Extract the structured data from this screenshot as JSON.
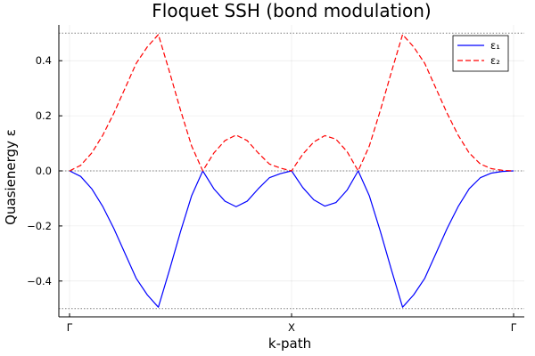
{
  "chart_data": {
    "type": "line",
    "title": "Floquet SSH (bond modulation)",
    "xlabel": "k-path",
    "ylabel": "Quasienergy ε",
    "xlim": [
      0,
      2
    ],
    "ylim": [
      -0.53,
      0.53
    ],
    "x_ticks": [
      {
        "value": 0,
        "label": "Γ"
      },
      {
        "value": 1,
        "label": "X"
      },
      {
        "value": 2,
        "label": "Γ"
      }
    ],
    "y_ticks": [
      {
        "value": -0.4,
        "label": "−0.4"
      },
      {
        "value": -0.2,
        "label": "−0.2"
      },
      {
        "value": 0.0,
        "label": "0.0"
      },
      {
        "value": 0.2,
        "label": "0.2"
      },
      {
        "value": 0.4,
        "label": "0.4"
      }
    ],
    "reference_lines_y": [
      -0.5,
      0.0,
      0.5
    ],
    "grid": true,
    "legend_position": "top-right",
    "x": [
      0,
      0.05,
      0.1,
      0.15,
      0.2,
      0.25,
      0.3,
      0.35,
      0.4,
      0.45,
      0.5,
      0.55,
      0.6,
      0.65,
      0.7,
      0.75,
      0.8,
      0.85,
      0.9,
      0.95,
      1.0,
      1.05,
      1.1,
      1.15,
      1.2,
      1.25,
      1.3,
      1.35,
      1.4,
      1.45,
      1.5,
      1.55,
      1.6,
      1.65,
      1.7,
      1.75,
      1.8,
      1.85,
      1.9,
      1.95,
      2.0
    ],
    "series": [
      {
        "name": "ε₁",
        "color": "#0000ff",
        "style": "solid",
        "values": [
          0.0,
          -0.02,
          -0.065,
          -0.13,
          -0.21,
          -0.3,
          -0.39,
          -0.45,
          -0.495,
          -0.36,
          -0.22,
          -0.09,
          0.0,
          -0.065,
          -0.11,
          -0.13,
          -0.11,
          -0.065,
          -0.025,
          -0.01,
          0.0,
          -0.06,
          -0.105,
          -0.128,
          -0.115,
          -0.07,
          0.0,
          -0.09,
          -0.22,
          -0.36,
          -0.495,
          -0.45,
          -0.39,
          -0.3,
          -0.21,
          -0.13,
          -0.065,
          -0.025,
          -0.008,
          -0.002,
          0.0
        ]
      },
      {
        "name": "ε₂",
        "color": "#ff0000",
        "style": "dashed",
        "values": [
          0.0,
          0.02,
          0.065,
          0.13,
          0.21,
          0.3,
          0.39,
          0.45,
          0.495,
          0.36,
          0.22,
          0.09,
          0.0,
          0.065,
          0.11,
          0.13,
          0.11,
          0.065,
          0.025,
          0.01,
          0.0,
          0.06,
          0.105,
          0.128,
          0.115,
          0.07,
          0.0,
          0.09,
          0.22,
          0.36,
          0.495,
          0.45,
          0.39,
          0.3,
          0.21,
          0.13,
          0.065,
          0.025,
          0.008,
          0.002,
          0.0
        ]
      }
    ]
  }
}
